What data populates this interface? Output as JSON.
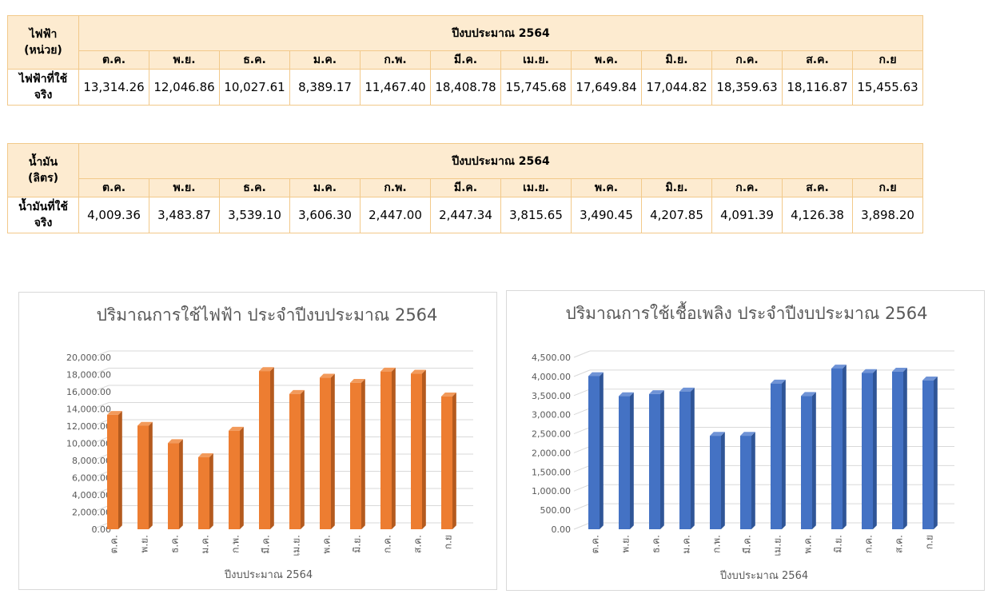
{
  "electricity_table": {
    "row_header_title": "ไฟฟ้า\n(หน่วย)",
    "year_header": "ปีงบประมาณ 2564",
    "months": [
      "ต.ค.",
      "พ.ย.",
      "ธ.ค.",
      "ม.ค.",
      "ก.พ.",
      "มี.ค.",
      "เม.ย.",
      "พ.ค.",
      "มิ.ย.",
      "ก.ค.",
      "ส.ค.",
      "ก.ย"
    ],
    "row_label": "ไฟฟ้าที่ใช้\nจริง",
    "values": [
      "13,314.26",
      "12,046.86",
      "10,027.61",
      "8,389.17",
      "11,467.40",
      "18,408.78",
      "15,745.68",
      "17,649.84",
      "17,044.82",
      "18,359.63",
      "18,116.87",
      "15,455.63"
    ]
  },
  "oil_table": {
    "row_header_title": "น้ำมัน\n(ลิตร)",
    "year_header": "ปีงบประมาณ 2564",
    "months": [
      "ต.ค.",
      "พ.ย.",
      "ธ.ค.",
      "ม.ค.",
      "ก.พ.",
      "มี.ค.",
      "เม.ย.",
      "พ.ค.",
      "มิ.ย.",
      "ก.ค.",
      "ส.ค.",
      "ก.ย"
    ],
    "row_label": "น้ำมันที่ใช้\nจริง",
    "values": [
      "4,009.36",
      "3,483.87",
      "3,539.10",
      "3,606.30",
      "2,447.00",
      "2,447.34",
      "3,815.65",
      "3,490.45",
      "4,207.85",
      "4,091.39",
      "4,126.38",
      "3,898.20"
    ]
  },
  "chart_data": [
    {
      "type": "bar",
      "title": "ปริมาณการใช้ไฟฟ้า ประจำปีงบประมาณ 2564",
      "xlabel": "ปีงบประมาณ 2564",
      "ylabel": "",
      "categories": [
        "ต.ค.",
        "พ.ย.",
        "ธ.ค.",
        "ม.ค.",
        "ก.พ.",
        "มี.ค.",
        "เม.ย.",
        "พ.ค.",
        "มิ.ย.",
        "ก.ค.",
        "ส.ค.",
        "ก.ย"
      ],
      "values": [
        13314.26,
        12046.86,
        10027.61,
        8389.17,
        11467.4,
        18408.78,
        15745.68,
        17649.84,
        17044.82,
        18359.63,
        18116.87,
        15455.63
      ],
      "ylim": [
        0,
        20000
      ],
      "yticks": [
        "0.00",
        "2,000.00",
        "4,000.00",
        "6,000.00",
        "8,000.00",
        "10,000.00",
        "12,000.00",
        "14,000.00",
        "16,000.00",
        "18,000.00",
        "20,000.00"
      ],
      "grid": true,
      "style": "3d-columns",
      "color": "#ed7d31",
      "side_color": "#b45a1e",
      "top_color": "#f29a5b"
    },
    {
      "type": "bar",
      "title": "ปริมาณการใช้เชื้อเพลิง ประจำปีงบประมาณ 2564",
      "xlabel": "ปีงบประมาณ 2564",
      "ylabel": "",
      "categories": [
        "ต.ค.",
        "พ.ย.",
        "ธ.ค.",
        "ม.ค.",
        "ก.พ.",
        "มี.ค.",
        "เม.ย.",
        "พ.ค.",
        "มิ.ย.",
        "ก.ค.",
        "ส.ค.",
        "ก.ย"
      ],
      "values": [
        4009.36,
        3483.87,
        3539.1,
        3606.3,
        2447.0,
        2447.34,
        3815.65,
        3490.45,
        4207.85,
        4091.39,
        4126.38,
        3898.2
      ],
      "ylim": [
        0,
        4500
      ],
      "yticks": [
        "0.00",
        "500.00",
        "1,000.00",
        "1,500.00",
        "2,000.00",
        "2,500.00",
        "3,000.00",
        "3,500.00",
        "4,000.00",
        "4,500.00"
      ],
      "grid": true,
      "style": "3d-columns",
      "color": "#4472c4",
      "side_color": "#2f5597",
      "top_color": "#6f93d6"
    }
  ]
}
